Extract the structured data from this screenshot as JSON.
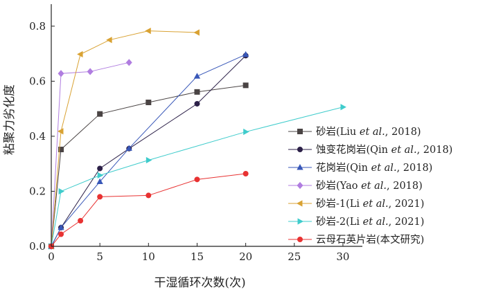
{
  "chart_data": {
    "type": "line",
    "title": "",
    "xlabel": "干湿循环次数(次)",
    "ylabel": "粘聚力劣化度",
    "xlim": [
      0,
      32
    ],
    "ylim": [
      0,
      0.88
    ],
    "xticks": [
      0,
      5,
      10,
      15,
      20,
      25,
      30
    ],
    "yticks": [
      0.0,
      0.2,
      0.4,
      0.6,
      0.8
    ],
    "xtick_labels": [
      "0",
      "5",
      "10",
      "15",
      "20",
      "25",
      "30"
    ],
    "ytick_labels": [
      "0.0",
      "0.2",
      "0.4",
      "0.6",
      "0.8"
    ],
    "grid": false,
    "legend_position": "right",
    "series": [
      {
        "name": "砂岩(Liu et al., 2018)",
        "name_parts": [
          [
            "砂岩(Liu ",
            false
          ],
          [
            "et al.",
            true
          ],
          [
            ", 2018)",
            false
          ]
        ],
        "color": "#4a4444",
        "marker": "square",
        "x": [
          0,
          1,
          5,
          10,
          15,
          20
        ],
        "y": [
          0,
          0.352,
          0.481,
          0.523,
          0.561,
          0.585
        ]
      },
      {
        "name": "蚀变花岗岩(Qin et al., 2018)",
        "name_parts": [
          [
            "蚀变花岗岩(Qin ",
            false
          ],
          [
            "et al.",
            true
          ],
          [
            ", 2018)",
            false
          ]
        ],
        "color": "#2c2048",
        "marker": "circle",
        "x": [
          0,
          1,
          5,
          8,
          15,
          20
        ],
        "y": [
          0,
          0.068,
          0.283,
          0.355,
          0.518,
          0.693
        ]
      },
      {
        "name": "花岗岩(Qin et al., 2018)",
        "name_parts": [
          [
            "花岗岩(Qin ",
            false
          ],
          [
            "et al.",
            true
          ],
          [
            ", 2018)",
            false
          ]
        ],
        "color": "#3857b8",
        "marker": "triangle-up",
        "x": [
          0,
          1,
          5,
          8,
          15,
          20
        ],
        "y": [
          0,
          0.068,
          0.235,
          0.356,
          0.618,
          0.697
        ]
      },
      {
        "name": "砂岩(Yao et al., 2018)",
        "name_parts": [
          [
            "砂岩(Yao ",
            false
          ],
          [
            "et al.",
            true
          ],
          [
            ", 2018)",
            false
          ]
        ],
        "color": "#b07de0",
        "marker": "diamond",
        "x": [
          0,
          1,
          4,
          8
        ],
        "y": [
          0,
          0.628,
          0.635,
          0.668
        ]
      },
      {
        "name": "砂岩-1(Li et al., 2021)",
        "name_parts": [
          [
            "砂岩-1(Li ",
            false
          ],
          [
            "et al.",
            true
          ],
          [
            ", 2021)",
            false
          ]
        ],
        "color": "#d9a233",
        "marker": "triangle-left",
        "x": [
          0,
          1,
          3,
          6,
          10,
          15
        ],
        "y": [
          0,
          0.418,
          0.698,
          0.75,
          0.783,
          0.777
        ]
      },
      {
        "name": "砂岩-2(Li et al., 2021)",
        "name_parts": [
          [
            "砂岩-2(Li ",
            false
          ],
          [
            "et al.",
            true
          ],
          [
            ", 2021)",
            false
          ]
        ],
        "color": "#3fcccc",
        "marker": "triangle-right",
        "x": [
          0,
          1,
          5,
          10,
          20,
          30
        ],
        "y": [
          0,
          0.2,
          0.258,
          0.313,
          0.416,
          0.506
        ]
      },
      {
        "name": "云母石英片岩(本文研究)",
        "name_parts": [
          [
            "云母石英片岩(本文研究)",
            false
          ]
        ],
        "color": "#e83232",
        "marker": "circle",
        "x": [
          0,
          1,
          3,
          5,
          10,
          15,
          20
        ],
        "y": [
          0,
          0.044,
          0.093,
          0.18,
          0.185,
          0.243,
          0.264
        ]
      }
    ]
  }
}
